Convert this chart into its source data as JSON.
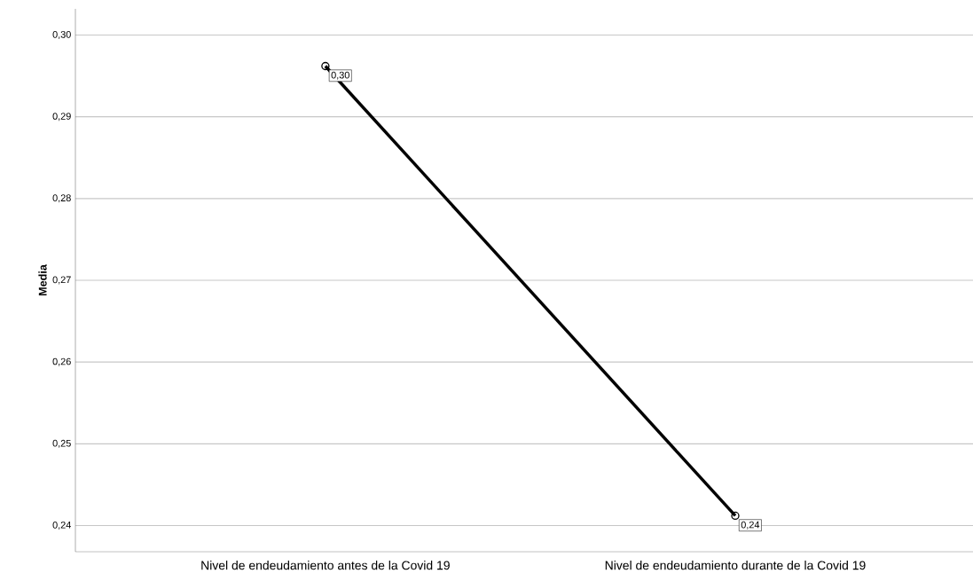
{
  "chart_data": {
    "type": "line",
    "ylabel": "Media",
    "categories": [
      "Nivel de endeudamiento antes de la Covid 19",
      "Nivel de endeudamiento durante de la Covid 19"
    ],
    "series": [
      {
        "color": "#000000",
        "values": [
          0.2962,
          0.2412
        ],
        "value_labels": [
          "0,30",
          "0,24"
        ]
      }
    ],
    "ylim": [
      0.2368,
      0.3032
    ],
    "yticks": [
      {
        "value": 0.24,
        "label": "0,24"
      },
      {
        "value": 0.25,
        "label": "0,25"
      },
      {
        "value": 0.26,
        "label": "0,26"
      },
      {
        "value": 0.27,
        "label": "0,27"
      },
      {
        "value": 0.28,
        "label": "0,28"
      },
      {
        "value": 0.29,
        "label": "0,29"
      },
      {
        "value": 0.3,
        "label": "0,30"
      }
    ],
    "grid": "y",
    "marker": "circle",
    "line_style": "solid"
  }
}
